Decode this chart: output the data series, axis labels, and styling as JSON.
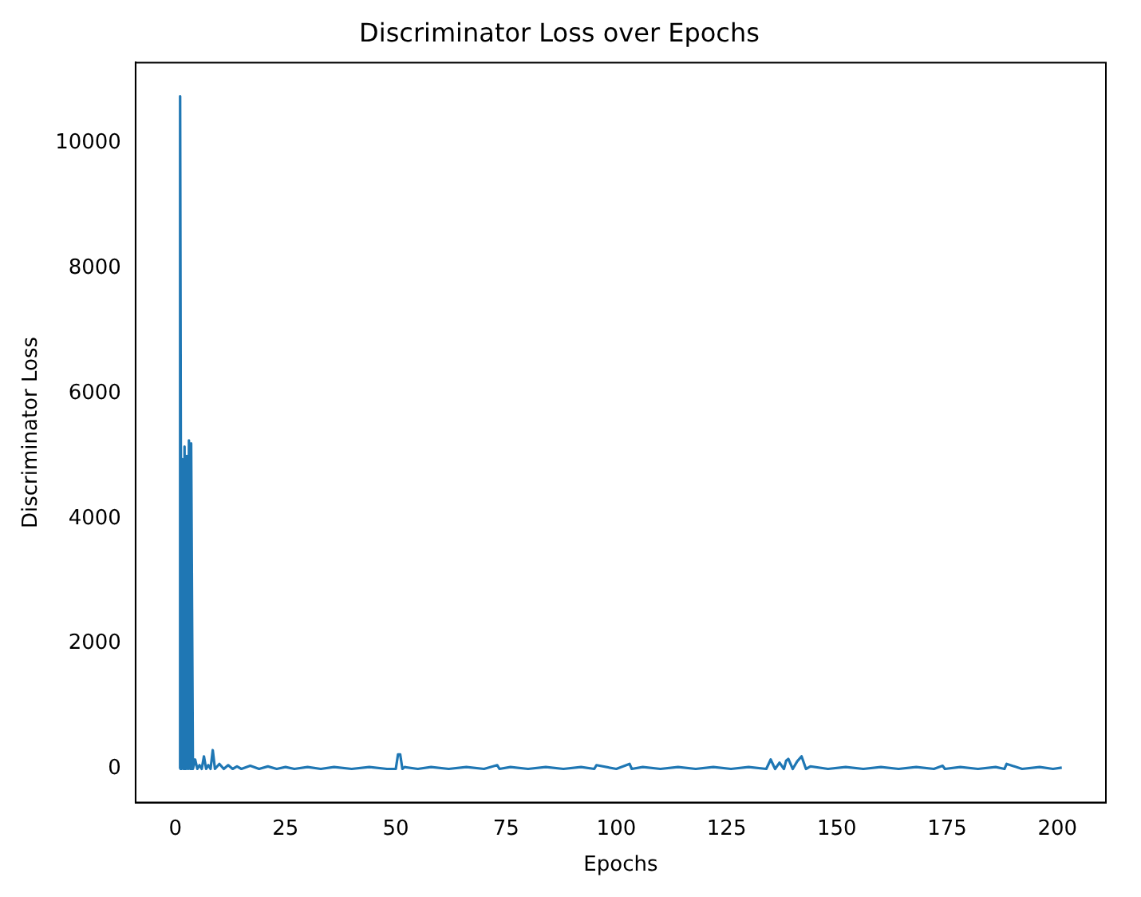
{
  "chart_data": {
    "type": "line",
    "title": "Discriminator Loss over Epochs",
    "xlabel": "Epochs",
    "ylabel": "Discriminator Loss",
    "xlim": [
      -9,
      211
    ],
    "ylim": [
      -537,
      11287
    ],
    "xticks": [
      0,
      25,
      50,
      75,
      100,
      125,
      150,
      175,
      200
    ],
    "yticks": [
      0,
      2000,
      4000,
      6000,
      8000,
      10000
    ],
    "grid": false,
    "legend": false,
    "marker": "none",
    "line_style": "solid",
    "series": [
      {
        "color": "#1f77b4",
        "x": [
          1,
          1.1,
          1.4,
          1.6,
          1.9,
          2.1,
          2.4,
          2.6,
          2.9,
          3.1,
          3.4,
          3.6,
          4,
          4.5,
          5,
          5.5,
          6,
          6.5,
          7,
          7.5,
          8,
          8.5,
          9,
          10,
          11,
          12,
          13,
          14,
          15,
          17,
          19,
          21,
          23,
          25,
          27,
          30,
          33,
          36,
          40,
          44,
          48,
          50,
          50.5,
          51,
          51.5,
          52,
          55,
          58,
          62,
          66,
          70,
          73,
          73.5,
          76,
          80,
          84,
          88,
          92,
          95,
          95.5,
          100,
          103,
          103.5,
          106,
          110,
          114,
          118,
          122,
          126,
          130,
          134,
          135,
          136,
          137,
          138,
          138.5,
          139,
          140,
          141,
          142,
          143,
          144,
          148,
          152,
          156,
          160,
          164,
          168,
          172,
          174,
          174.5,
          178,
          182,
          186,
          188,
          188.5,
          192,
          196,
          199,
          201
        ],
        "values": [
          0,
          10750,
          0,
          4950,
          0,
          5150,
          0,
          5000,
          0,
          5250,
          0,
          5200,
          0,
          150,
          0,
          60,
          0,
          200,
          0,
          60,
          0,
          300,
          0,
          80,
          0,
          60,
          0,
          40,
          0,
          50,
          0,
          40,
          0,
          30,
          0,
          30,
          0,
          30,
          0,
          30,
          0,
          0,
          230,
          230,
          0,
          30,
          0,
          30,
          0,
          30,
          0,
          60,
          0,
          30,
          0,
          30,
          0,
          30,
          0,
          60,
          0,
          80,
          0,
          30,
          0,
          30,
          0,
          30,
          0,
          30,
          0,
          150,
          0,
          100,
          0,
          130,
          160,
          0,
          120,
          200,
          0,
          40,
          0,
          30,
          0,
          30,
          0,
          30,
          0,
          50,
          0,
          30,
          0,
          30,
          0,
          80,
          0,
          30,
          0,
          20
        ]
      }
    ]
  }
}
